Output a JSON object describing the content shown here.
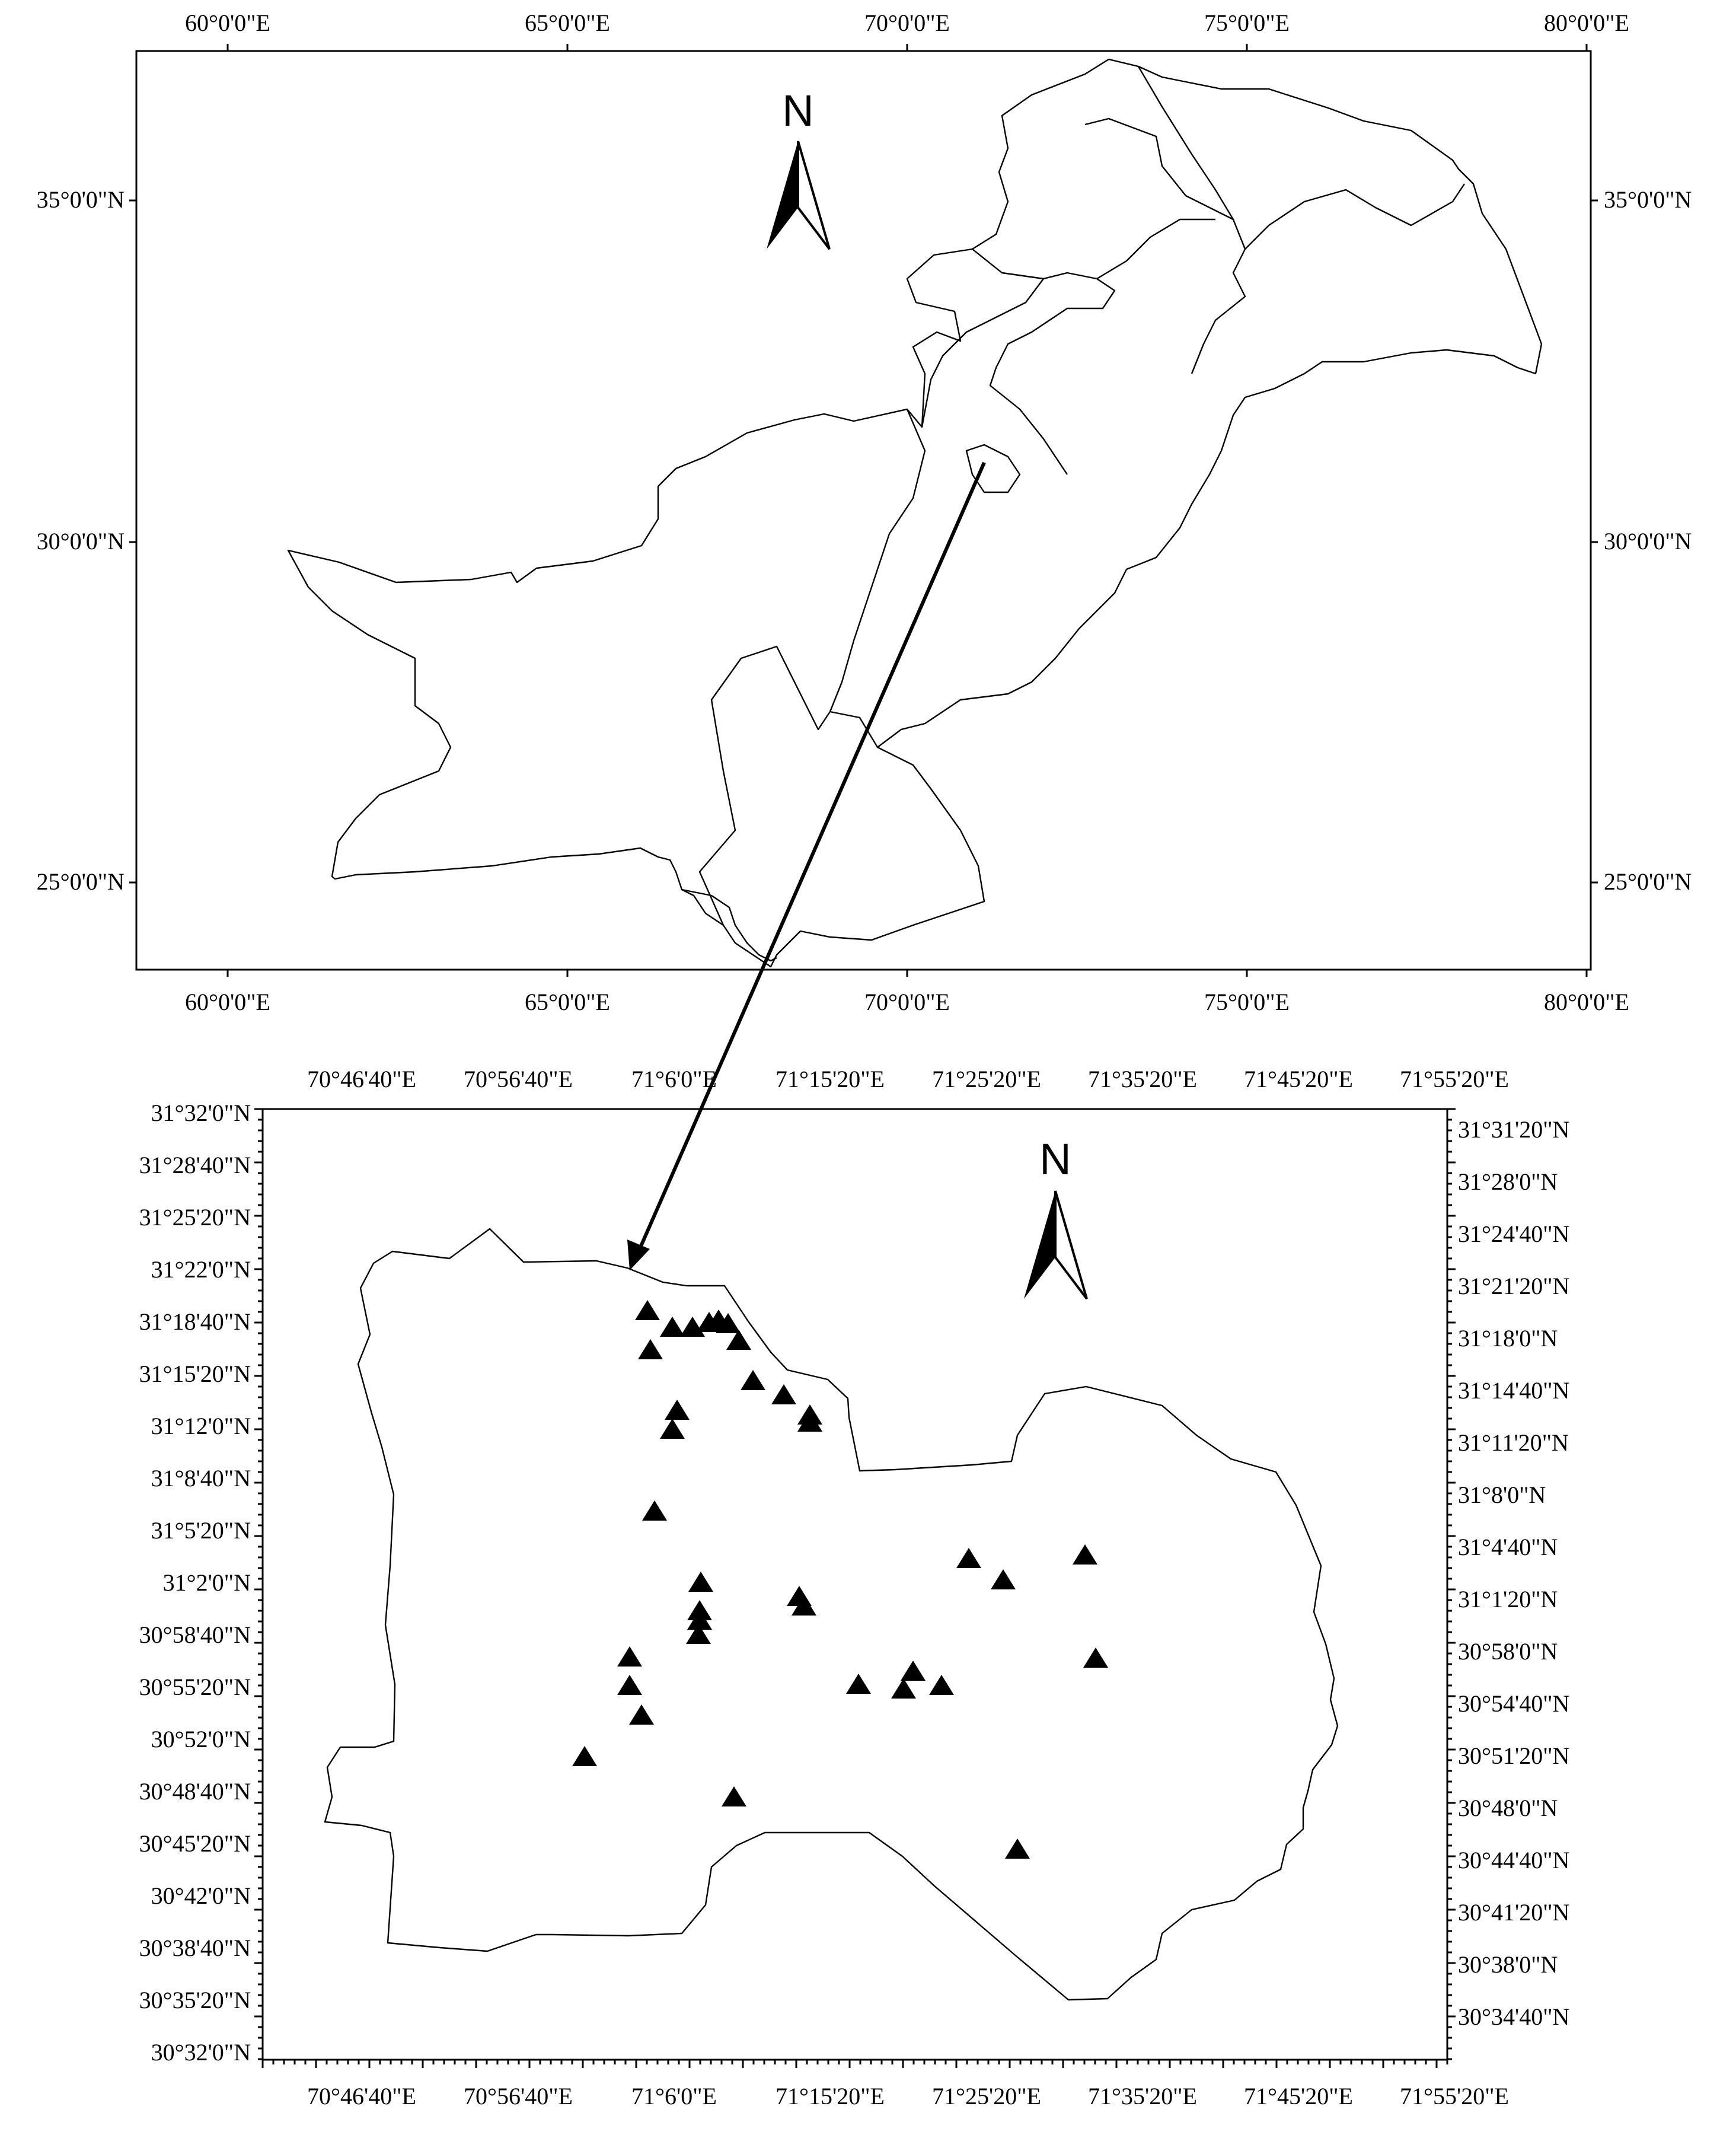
{
  "top_map": {
    "x_tick_labels": [
      "60°0'0\"E",
      "65°0'0\"E",
      "70°0'0\"E",
      "75°0'0\"E",
      "80°0'0\"E"
    ],
    "y_tick_labels": [
      "35°0'0\"N",
      "30°0'0\"N",
      "25°0'0\"N"
    ],
    "north_arrow_label": "N"
  },
  "bottom_map": {
    "x_tick_labels": [
      "70°46'40\"E",
      "70°56'40\"E",
      "71°6'0\"E",
      "71°15'20\"E",
      "71°25'20\"E",
      "71°35'20\"E",
      "71°45'20\"E",
      "71°55'20\"E"
    ],
    "y_tick_labels_left": [
      "31°32'0\"N",
      "31°28'40\"N",
      "31°25'20\"N",
      "31°22'0\"N",
      "31°18'40\"N",
      "31°15'20\"N",
      "31°12'0\"N",
      "31°8'40\"N",
      "31°5'20\"N",
      "31°2'0\"N",
      "30°58'40\"N",
      "30°55'20\"N",
      "30°52'0\"N",
      "30°48'40\"N",
      "30°45'20\"N",
      "30°42'0\"N",
      "30°38'40\"N",
      "30°35'20\"N",
      "30°32'0\"N"
    ],
    "y_tick_labels_right": [
      "31°31'20\"N",
      "31°28'0\"N",
      "31°24'40\"N",
      "31°21'20\"N",
      "31°18'0\"N",
      "31°14'40\"N",
      "31°11'20\"N",
      "31°8'0\"N",
      "31°4'40\"N",
      "31°1'20\"N",
      "30°58'0\"N",
      "30°54'40\"N",
      "30°51'20\"N",
      "30°48'0\"N",
      "30°44'40\"N",
      "30°41'20\"N",
      "30°38'0\"N",
      "30°34'40\"N"
    ],
    "north_arrow_label": "N",
    "sampling_site_symbol": "triangle",
    "sampling_site_count": 38
  }
}
